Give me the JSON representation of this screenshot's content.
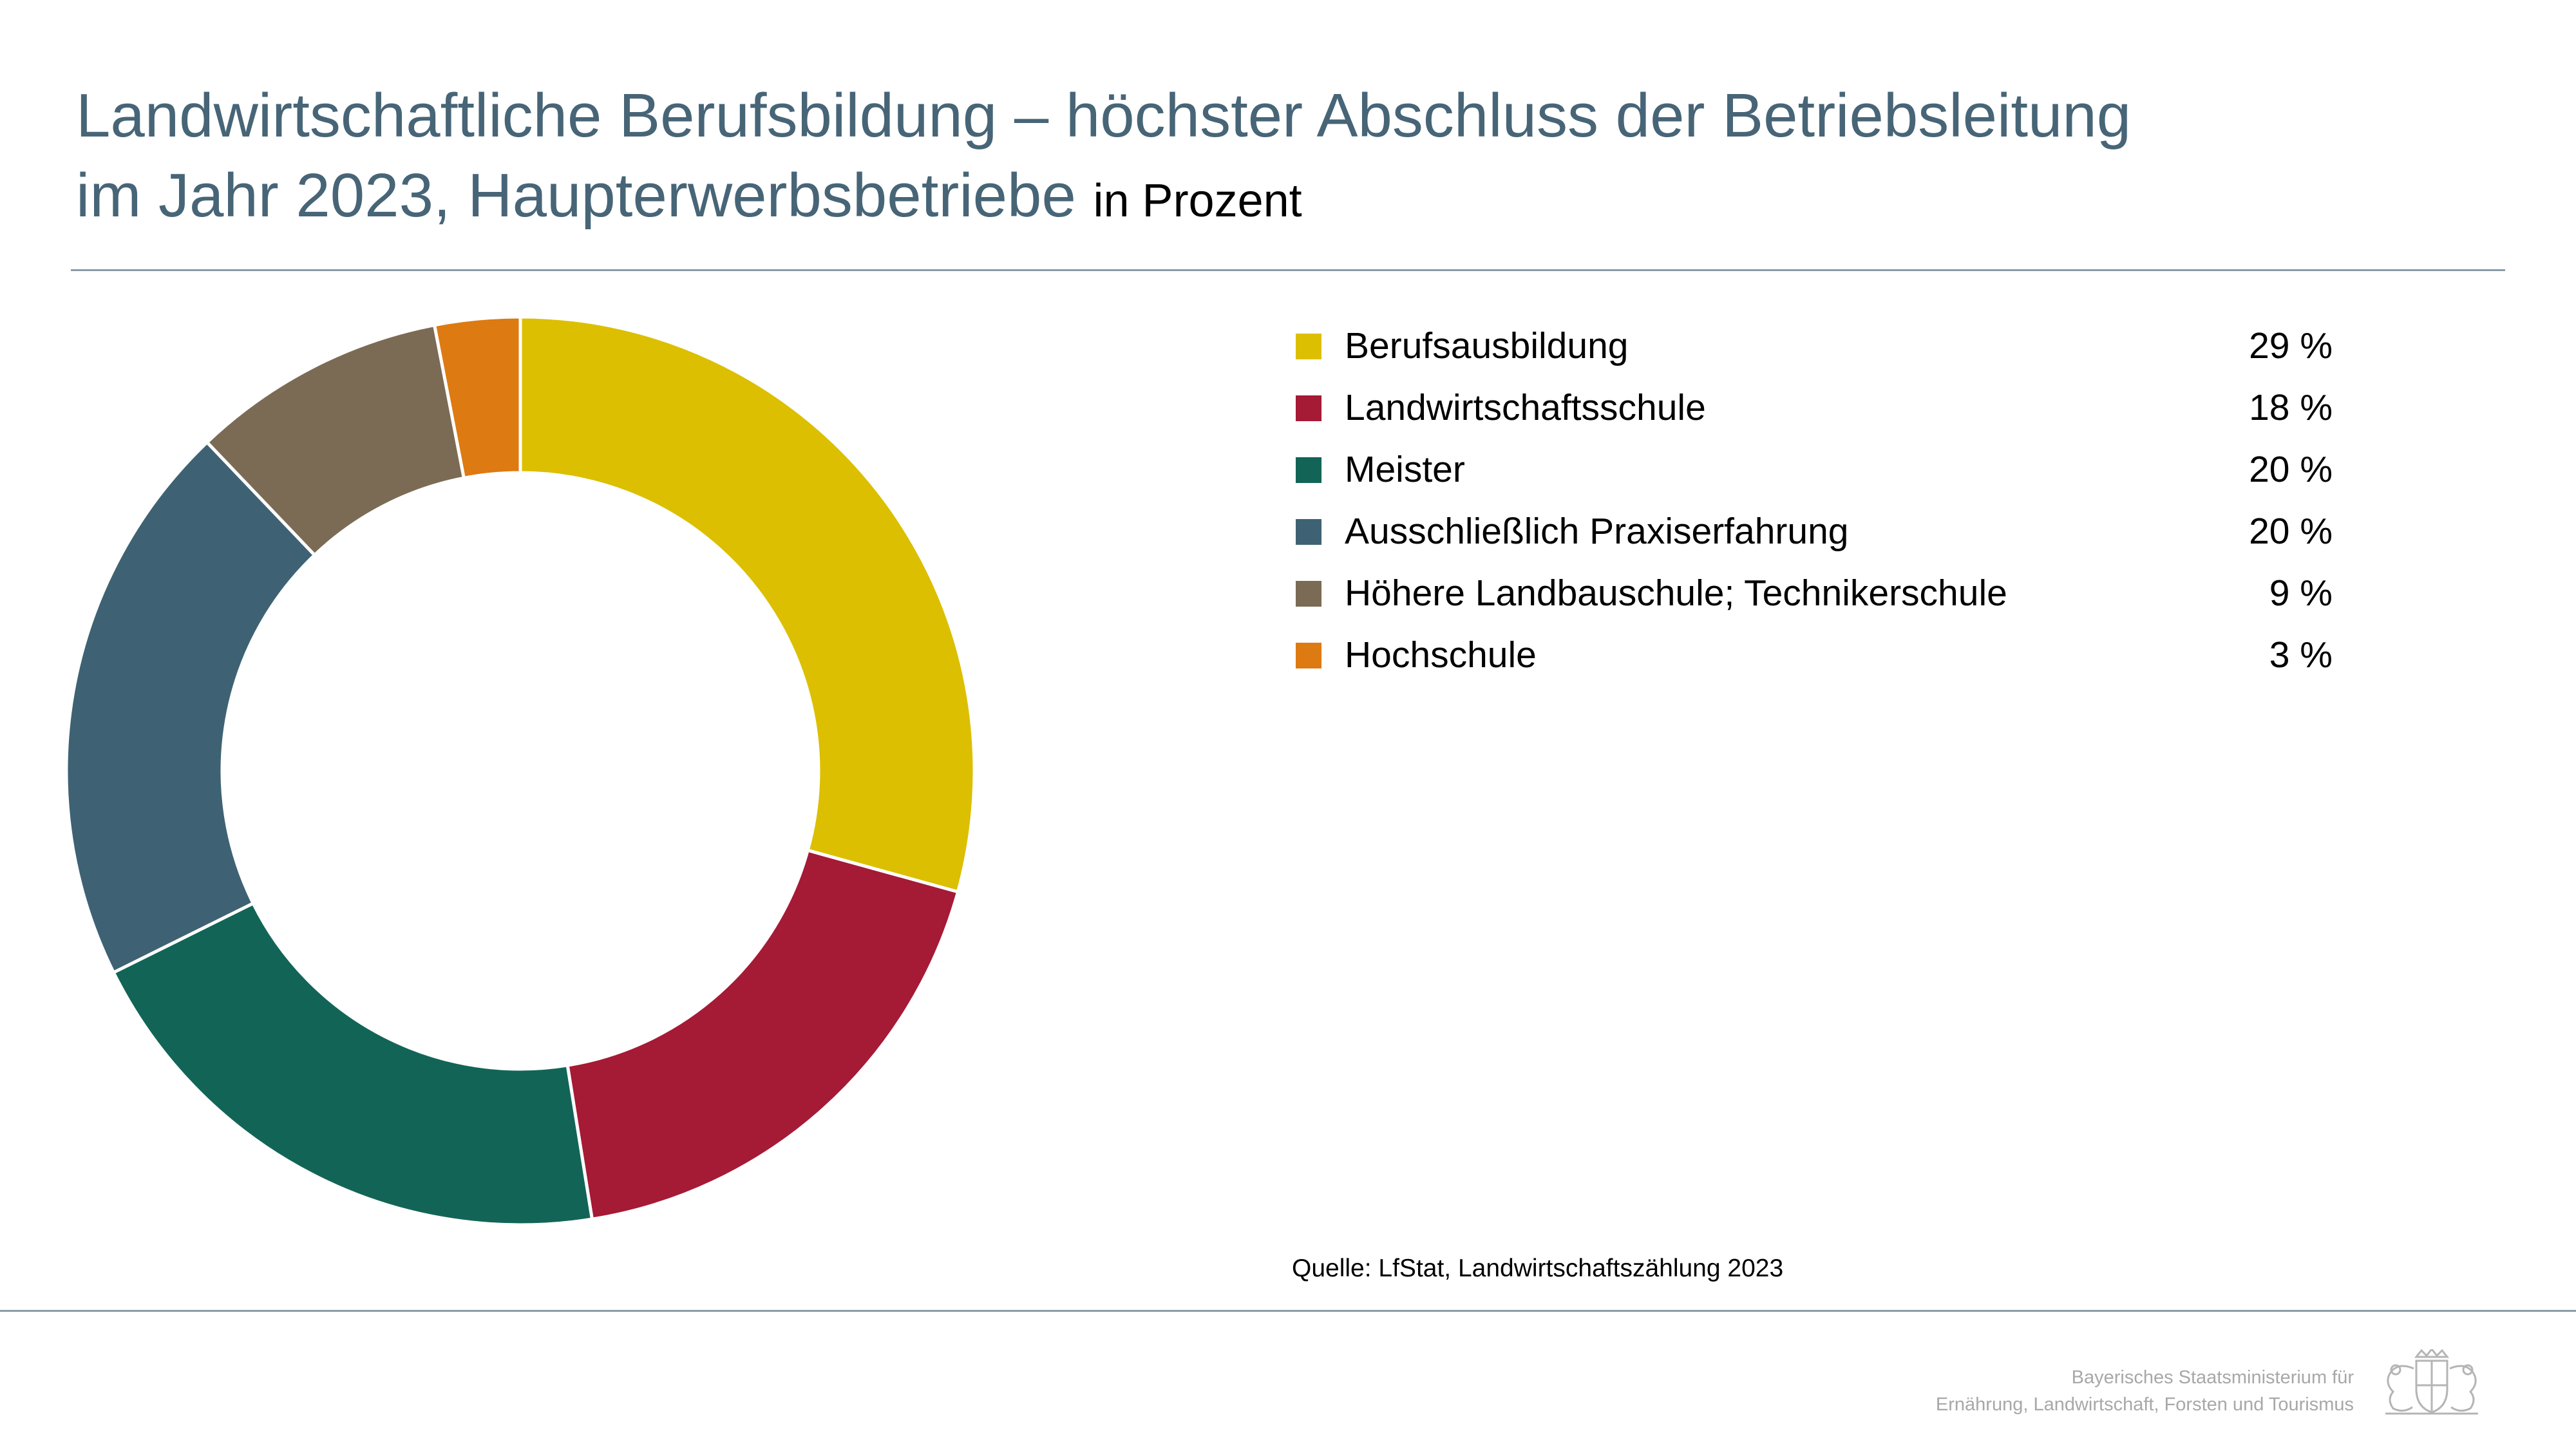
{
  "title": {
    "line1": "Landwirtschaftliche Berufsbildung – höchster Abschluss der Betriebsleitung",
    "line2": "im Jahr 2023, Haupterwerbsbetriebe",
    "unit": "in Prozent"
  },
  "chart_data": {
    "type": "pie",
    "donut": true,
    "categories": [
      "Berufsausbildung",
      "Landwirtschaftsschule",
      "Meister",
      "Ausschließlich Praxiserfahrung",
      "Höhere Landbauschule; Technikerschule",
      "Hochschule"
    ],
    "values": [
      29,
      18,
      20,
      20,
      9,
      3
    ],
    "value_labels": [
      "29 %",
      "18 %",
      "20 %",
      "20 %",
      "9 %",
      "3 %"
    ],
    "colors": [
      "#dcbf00",
      "#a51a35",
      "#126556",
      "#3e6273",
      "#7b6b55",
      "#dd7a12"
    ],
    "legend_placement": "right"
  },
  "source": "Quelle: LfStat, Landwirtschaftszählung 2023",
  "ministry": {
    "line1": "Bayerisches Staatsministerium für",
    "line2": "Ernährung, Landwirtschaft, Forsten und Tourismus"
  },
  "logo": {
    "icon": "bavarian-coat-of-arms"
  }
}
